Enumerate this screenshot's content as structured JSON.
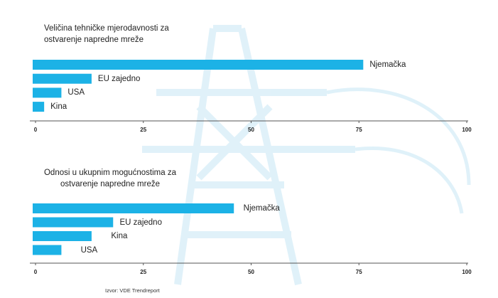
{
  "chart_data": [
    {
      "type": "bar",
      "orientation": "horizontal",
      "title": "Veličina tehničke mjerodavnosti za\nostvarenje napredne mreže",
      "categories": [
        "Njemačka",
        "EU zajedno",
        "USA",
        "Kina"
      ],
      "values": [
        76,
        13,
        6,
        2
      ],
      "color": "#1cb2e6",
      "xlim": [
        0,
        100
      ],
      "xticks": [
        0,
        25,
        50,
        75,
        100
      ]
    },
    {
      "type": "bar",
      "orientation": "horizontal",
      "title": "Odnosi u ukupnim mogućnostima za\nostvarenje napredne mreže",
      "categories": [
        "Njemačka",
        "EU zajedno",
        "Kina",
        "USA"
      ],
      "values": [
        46,
        18,
        13,
        6
      ],
      "color": "#1cb2e6",
      "xlim": [
        0,
        100
      ],
      "xticks": [
        0,
        25,
        50,
        75,
        100
      ]
    }
  ],
  "source": "Izvor: VDE Trendreport"
}
